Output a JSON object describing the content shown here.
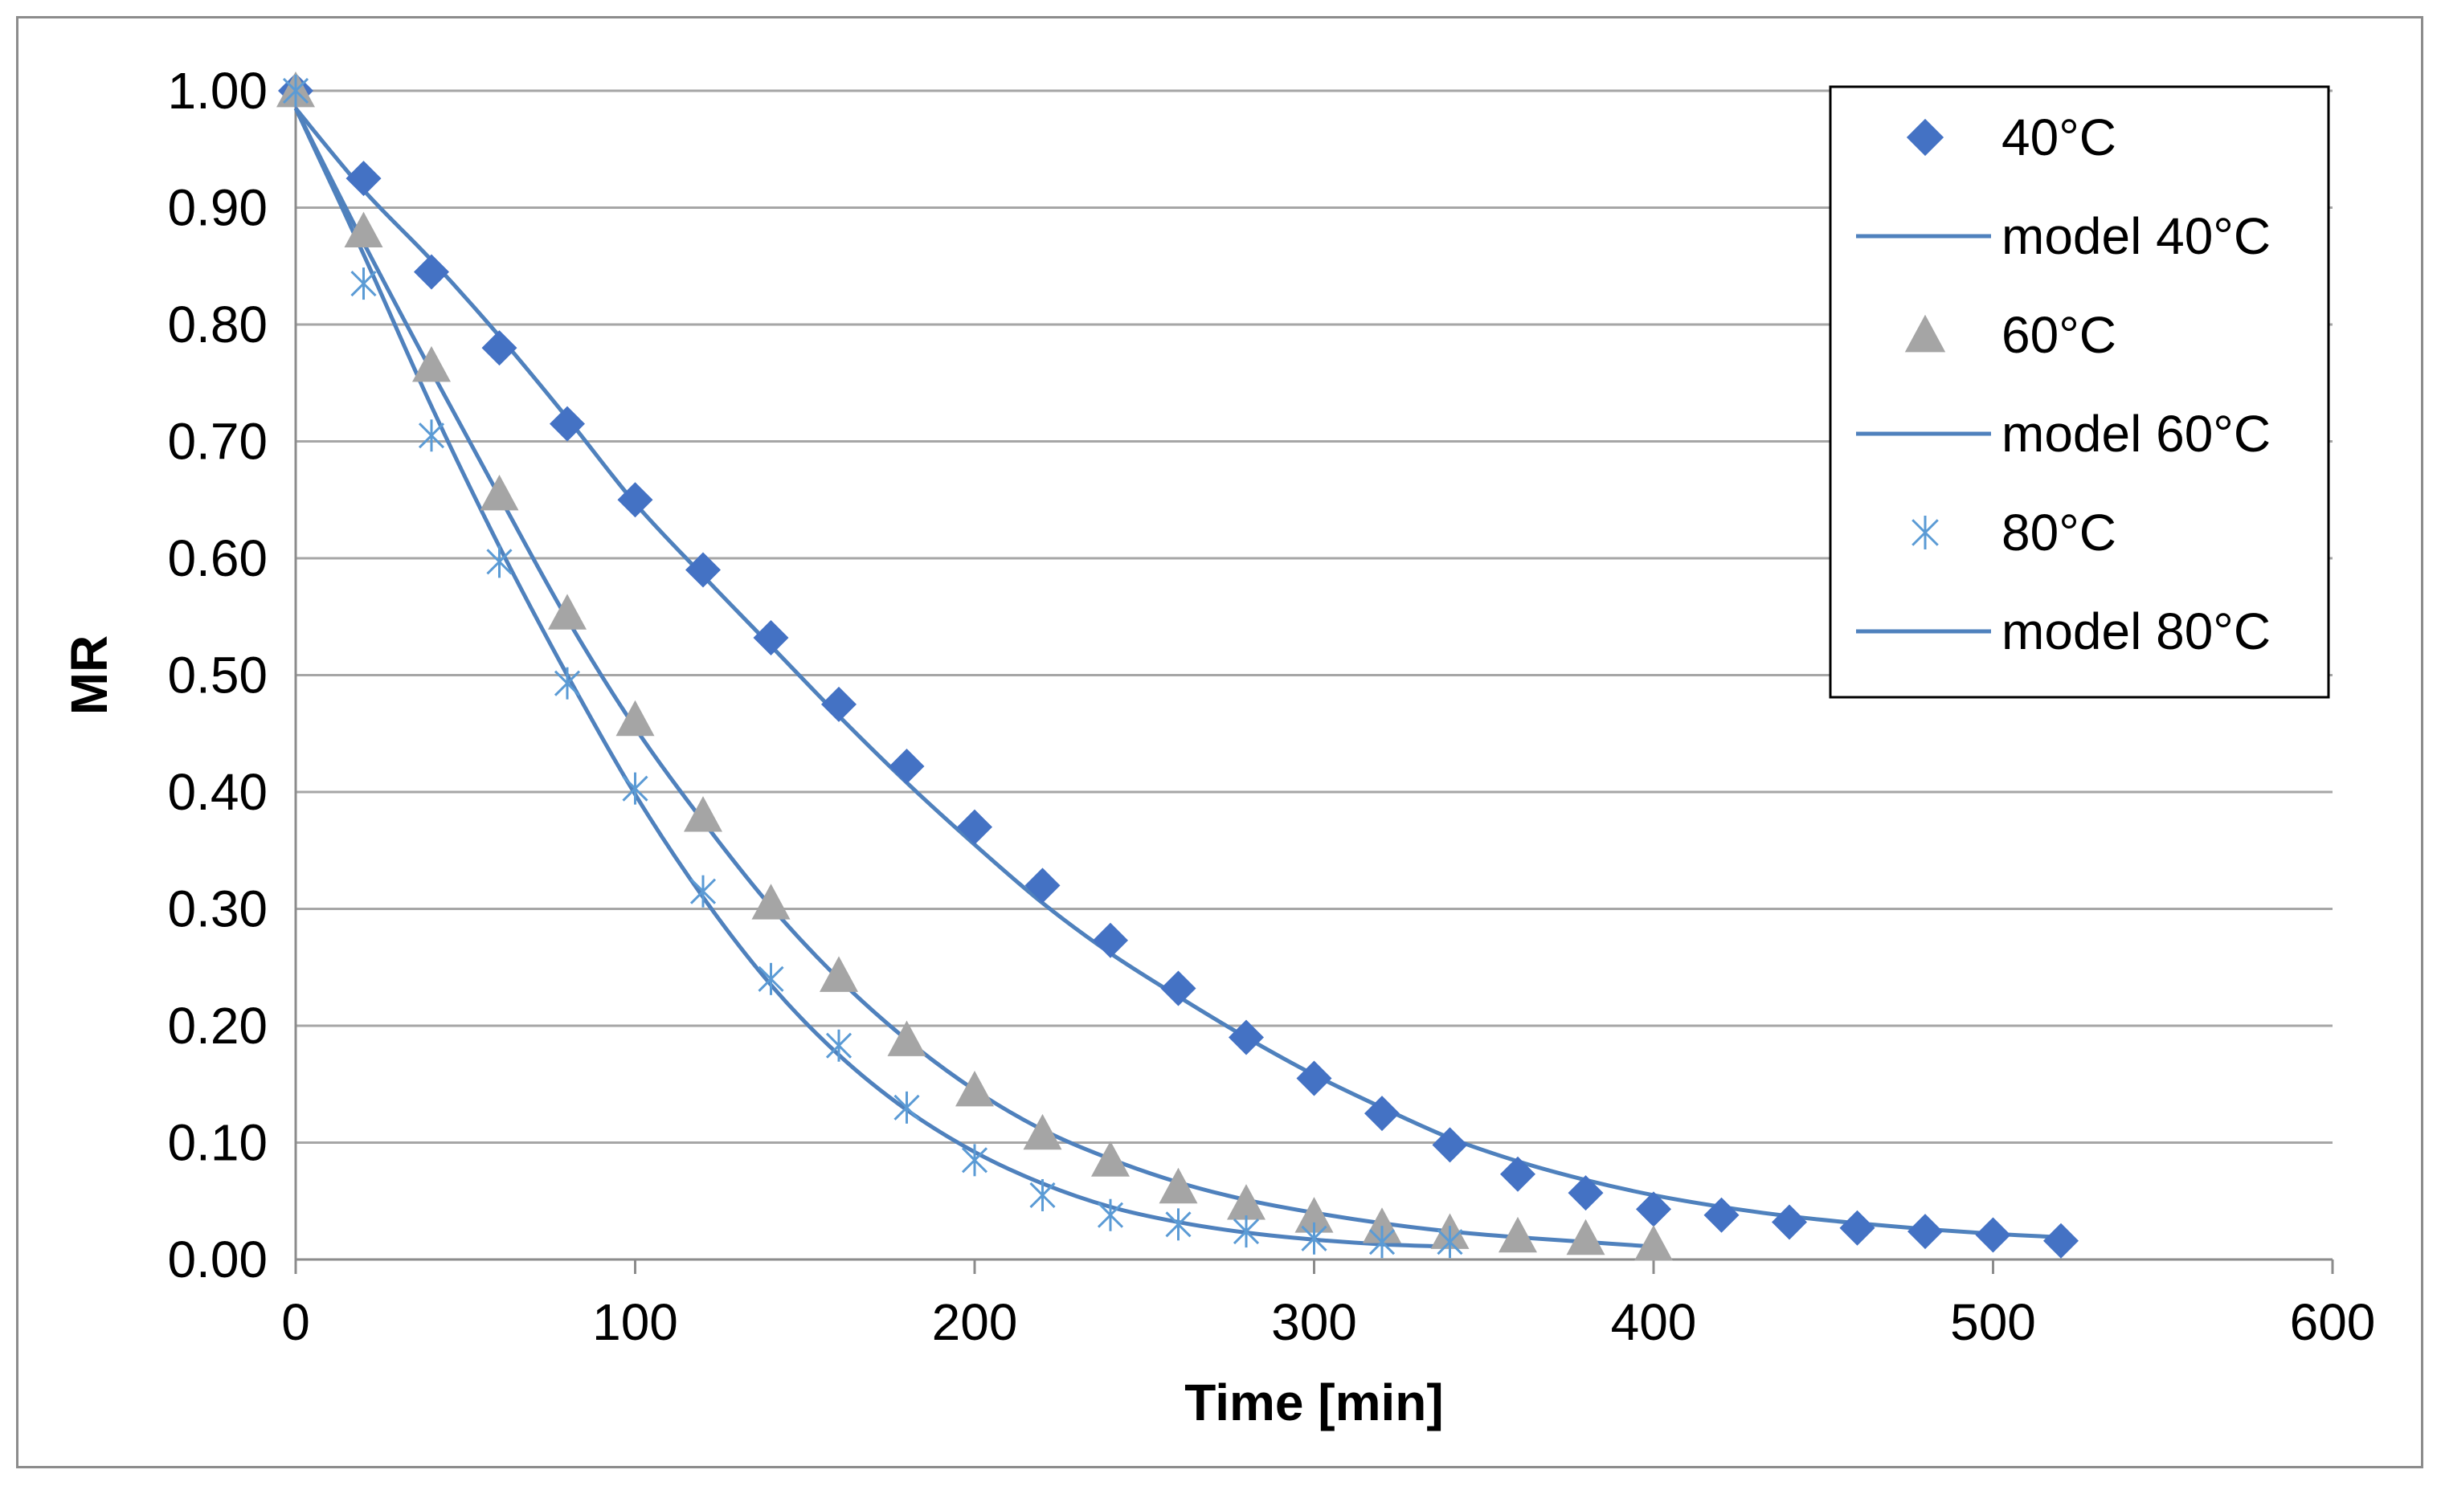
{
  "chart_data": {
    "type": "scatter",
    "title": "",
    "xlabel": "Time [min]",
    "ylabel": "MR",
    "xlim": [
      0,
      600
    ],
    "ylim": [
      0,
      1
    ],
    "xticks": [
      "0",
      "100",
      "200",
      "300",
      "400",
      "500",
      "600"
    ],
    "yticks": [
      "0.00",
      "0.10",
      "0.20",
      "0.30",
      "0.40",
      "0.50",
      "0.60",
      "0.70",
      "0.80",
      "0.90",
      "1.00"
    ],
    "grid": true,
    "legend_position": "top-right",
    "colors": {
      "s40": "#4472c4",
      "s60": "#a5a5a5",
      "s80": "#5b9bd5",
      "model": "#4f81bd"
    },
    "series": [
      {
        "name": "40°C",
        "kind": "points",
        "marker": "diamond",
        "color": "#4472c4",
        "x": [
          0,
          20,
          40,
          60,
          80,
          100,
          120,
          140,
          160,
          180,
          200,
          220,
          240,
          260,
          280,
          300,
          320,
          340,
          360,
          380,
          400,
          420,
          440,
          460,
          480,
          500,
          520
        ],
        "y": [
          1.0,
          0.925,
          0.845,
          0.78,
          0.715,
          0.65,
          0.59,
          0.532,
          0.475,
          0.422,
          0.37,
          0.32,
          0.273,
          0.232,
          0.19,
          0.155,
          0.125,
          0.098,
          0.073,
          0.057,
          0.043,
          0.038,
          0.032,
          0.027,
          0.024,
          0.021,
          0.016
        ]
      },
      {
        "name": "model 40°C",
        "kind": "line",
        "color": "#4f81bd",
        "x": [
          0,
          20,
          40,
          60,
          80,
          100,
          120,
          140,
          160,
          180,
          200,
          220,
          240,
          260,
          280,
          300,
          320,
          340,
          360,
          380,
          400,
          420,
          440,
          460,
          480,
          500,
          520
        ],
        "y": [
          0.985,
          0.915,
          0.855,
          0.79,
          0.72,
          0.647,
          0.585,
          0.525,
          0.465,
          0.408,
          0.355,
          0.305,
          0.262,
          0.225,
          0.19,
          0.158,
          0.13,
          0.104,
          0.084,
          0.068,
          0.055,
          0.045,
          0.037,
          0.031,
          0.026,
          0.022,
          0.019
        ]
      },
      {
        "name": "60°C",
        "kind": "points",
        "marker": "triangle",
        "color": "#a5a5a5",
        "x": [
          0,
          20,
          40,
          60,
          80,
          100,
          120,
          140,
          160,
          180,
          200,
          220,
          240,
          260,
          280,
          300,
          320,
          340,
          360,
          380,
          400
        ],
        "y": [
          1.0,
          0.88,
          0.765,
          0.655,
          0.553,
          0.462,
          0.38,
          0.305,
          0.243,
          0.188,
          0.145,
          0.108,
          0.085,
          0.062,
          0.048,
          0.037,
          0.028,
          0.023,
          0.02,
          0.018,
          0.013
        ]
      },
      {
        "name": "model 60°C",
        "kind": "line",
        "color": "#4f81bd",
        "x": [
          0,
          20,
          40,
          60,
          80,
          100,
          120,
          140,
          160,
          180,
          200,
          220,
          240,
          260,
          280,
          300,
          320,
          340,
          360,
          380,
          400
        ],
        "y": [
          0.985,
          0.87,
          0.76,
          0.653,
          0.548,
          0.455,
          0.375,
          0.302,
          0.24,
          0.188,
          0.145,
          0.111,
          0.086,
          0.066,
          0.051,
          0.04,
          0.031,
          0.024,
          0.019,
          0.015,
          0.011
        ]
      },
      {
        "name": "80°C",
        "kind": "points",
        "marker": "asterisk",
        "color": "#5b9bd5",
        "x": [
          0,
          20,
          40,
          60,
          80,
          100,
          120,
          140,
          160,
          180,
          200,
          220,
          240,
          260,
          280,
          300,
          320,
          340
        ],
        "y": [
          1.0,
          0.835,
          0.705,
          0.597,
          0.493,
          0.403,
          0.315,
          0.24,
          0.183,
          0.13,
          0.085,
          0.055,
          0.038,
          0.03,
          0.024,
          0.018,
          0.015,
          0.015
        ]
      },
      {
        "name": "model 80°C",
        "kind": "line",
        "color": "#4f81bd",
        "x": [
          0,
          20,
          40,
          60,
          80,
          100,
          120,
          140,
          160,
          180,
          200,
          220,
          240,
          260,
          280,
          300,
          320,
          340
        ],
        "y": [
          0.985,
          0.86,
          0.73,
          0.61,
          0.5,
          0.398,
          0.31,
          0.235,
          0.175,
          0.128,
          0.092,
          0.065,
          0.045,
          0.032,
          0.023,
          0.017,
          0.013,
          0.011
        ]
      }
    ]
  }
}
